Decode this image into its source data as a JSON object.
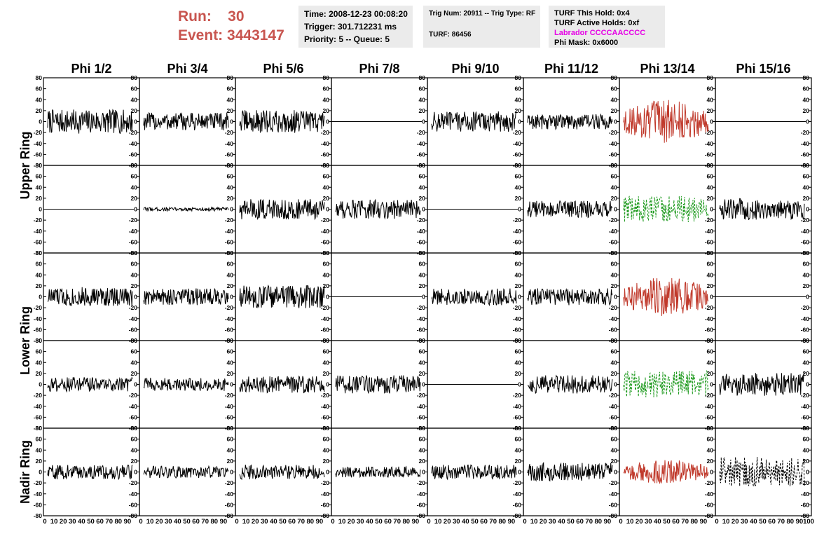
{
  "header": {
    "run_label": "Run:",
    "run_value": "30",
    "event_label": "Event:",
    "event_value": "3443147"
  },
  "info_box_1": {
    "time": "Time: 2008-12-23 00:08:20",
    "trigger": "Trigger: 301.712231 ms",
    "priority": "Priority: 5 -- Queue: 5"
  },
  "info_box_2": {
    "trig": "Trig Num: 20911 -- Trig Type: RF",
    "turf": "TURF: 86456"
  },
  "info_box_3": {
    "hold": "TURF This Hold: 0x4",
    "active": "TURF Active Holds: 0xf",
    "labrador": "Labrador CCCCAACCCC",
    "phimask": "Phi Mask: 0x6000"
  },
  "chart_data": {
    "type": "line",
    "columns": [
      "Phi 1/2",
      "Phi 3/4",
      "Phi 5/6",
      "Phi 7/8",
      "Phi 9/10",
      "Phi 11/12",
      "Phi 13/14",
      "Phi 15/16"
    ],
    "row_groups": [
      {
        "label": "Upper Ring",
        "panels": 2
      },
      {
        "label": "Lower Ring",
        "panels": 2
      },
      {
        "label": "Nadir Ring",
        "panels": 1
      }
    ],
    "ylim": [
      -80,
      80
    ],
    "y_ticks": [
      -80,
      -60,
      -40,
      -20,
      0,
      20,
      40,
      60,
      80
    ],
    "y_tick_labels": [
      "-80",
      "-60",
      "-40",
      "-20",
      "0",
      "20",
      "40",
      "60",
      "80"
    ],
    "xlim": [
      0,
      100
    ],
    "x_tick_labels": [
      "0",
      "10",
      "20",
      "30",
      "40",
      "50",
      "60",
      "70",
      "80",
      "90",
      "100"
    ],
    "colors": {
      "default": "#000000",
      "red": "#c0392b",
      "green": "#1e9a1e"
    },
    "panels": [
      [
        {
          "amp": 20,
          "style": "solid",
          "color": "default"
        },
        {
          "amp": 0,
          "style": "flat",
          "color": "default"
        },
        {
          "amp": 16,
          "style": "solid",
          "color": "default"
        },
        {
          "amp": 12,
          "style": "solid",
          "color": "default"
        },
        {
          "amp": 12,
          "style": "solid",
          "color": "default"
        }
      ],
      [
        {
          "amp": 15,
          "style": "solid",
          "color": "default"
        },
        {
          "amp": 3,
          "style": "solid",
          "color": "default"
        },
        {
          "amp": 14,
          "style": "solid",
          "color": "default"
        },
        {
          "amp": 11,
          "style": "solid",
          "color": "default"
        },
        {
          "amp": 10,
          "style": "solid",
          "color": "default"
        }
      ],
      [
        {
          "amp": 19,
          "style": "solid",
          "color": "default"
        },
        {
          "amp": 17,
          "style": "solid",
          "color": "default"
        },
        {
          "amp": 19,
          "style": "solid",
          "color": "default"
        },
        {
          "amp": 14,
          "style": "solid",
          "color": "default"
        },
        {
          "amp": 12,
          "style": "solid",
          "color": "default"
        }
      ],
      [
        {
          "amp": 0,
          "style": "flat",
          "color": "default"
        },
        {
          "amp": 16,
          "style": "solid",
          "color": "default"
        },
        {
          "amp": 0,
          "style": "flat",
          "color": "default"
        },
        {
          "amp": 15,
          "style": "solid",
          "color": "default"
        },
        {
          "amp": 9,
          "style": "solid",
          "color": "default"
        }
      ],
      [
        {
          "amp": 17,
          "style": "solid",
          "color": "default"
        },
        {
          "amp": 0,
          "style": "flat",
          "color": "default"
        },
        {
          "amp": 14,
          "style": "solid",
          "color": "default"
        },
        {
          "amp": 0,
          "style": "flat",
          "color": "default"
        },
        {
          "amp": 12,
          "style": "solid",
          "color": "default"
        }
      ],
      [
        {
          "amp": 13,
          "style": "solid",
          "color": "default"
        },
        {
          "amp": 14,
          "style": "solid",
          "color": "default"
        },
        {
          "amp": 14,
          "style": "solid",
          "color": "default"
        },
        {
          "amp": 15,
          "style": "solid",
          "color": "default"
        },
        {
          "amp": 15,
          "style": "solid",
          "color": "default"
        }
      ],
      [
        {
          "amp": 30,
          "style": "solid",
          "color": "red"
        },
        {
          "amp": 22,
          "style": "dashed",
          "color": "green"
        },
        {
          "amp": 27,
          "style": "solid",
          "color": "red"
        },
        {
          "amp": 22,
          "style": "dashed",
          "color": "green"
        },
        {
          "amp": 17,
          "style": "solid",
          "color": "red"
        }
      ],
      [
        {
          "amp": 0,
          "style": "flat",
          "color": "default"
        },
        {
          "amp": 18,
          "style": "solid",
          "color": "default"
        },
        {
          "amp": 0,
          "style": "flat",
          "color": "default"
        },
        {
          "amp": 19,
          "style": "solid",
          "color": "default"
        },
        {
          "amp": 25,
          "style": "dashed",
          "color": "default"
        }
      ]
    ]
  }
}
